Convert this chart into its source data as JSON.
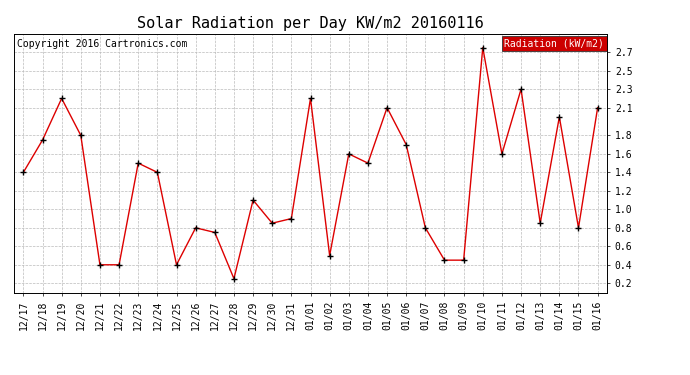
{
  "title": "Solar Radiation per Day KW/m2 20160116",
  "copyright": "Copyright 2016 Cartronics.com",
  "legend_label": "Radiation (kW/m2)",
  "x_labels": [
    "12/17",
    "12/18",
    "12/19",
    "12/20",
    "12/21",
    "12/22",
    "12/23",
    "12/24",
    "12/25",
    "12/26",
    "12/27",
    "12/28",
    "12/29",
    "12/30",
    "12/31",
    "01/01",
    "01/02",
    "01/03",
    "01/04",
    "01/05",
    "01/06",
    "01/07",
    "01/08",
    "01/09",
    "01/10",
    "01/11",
    "01/12",
    "01/13",
    "01/14",
    "01/15",
    "01/16"
  ],
  "y_values": [
    1.4,
    1.75,
    2.2,
    1.8,
    0.4,
    0.4,
    1.5,
    1.4,
    0.4,
    0.8,
    0.75,
    0.25,
    1.1,
    0.85,
    0.9,
    2.2,
    0.5,
    1.6,
    1.5,
    2.1,
    1.7,
    0.8,
    0.45,
    0.45,
    2.75,
    1.6,
    2.3,
    0.85,
    2.0,
    0.8,
    2.1
  ],
  "ylim": [
    0.1,
    2.9
  ],
  "yticks": [
    0.2,
    0.4,
    0.6,
    0.8,
    1.0,
    1.2,
    1.4,
    1.6,
    1.8,
    2.1,
    2.3,
    2.5,
    2.7
  ],
  "line_color": "#dd0000",
  "marker_color": "#000000",
  "bg_color": "#ffffff",
  "grid_color": "#bbbbbb",
  "title_fontsize": 11,
  "copyright_fontsize": 7,
  "tick_fontsize": 7,
  "legend_bg_color": "#cc0000",
  "legend_text_color": "#ffffff",
  "legend_fontsize": 7
}
